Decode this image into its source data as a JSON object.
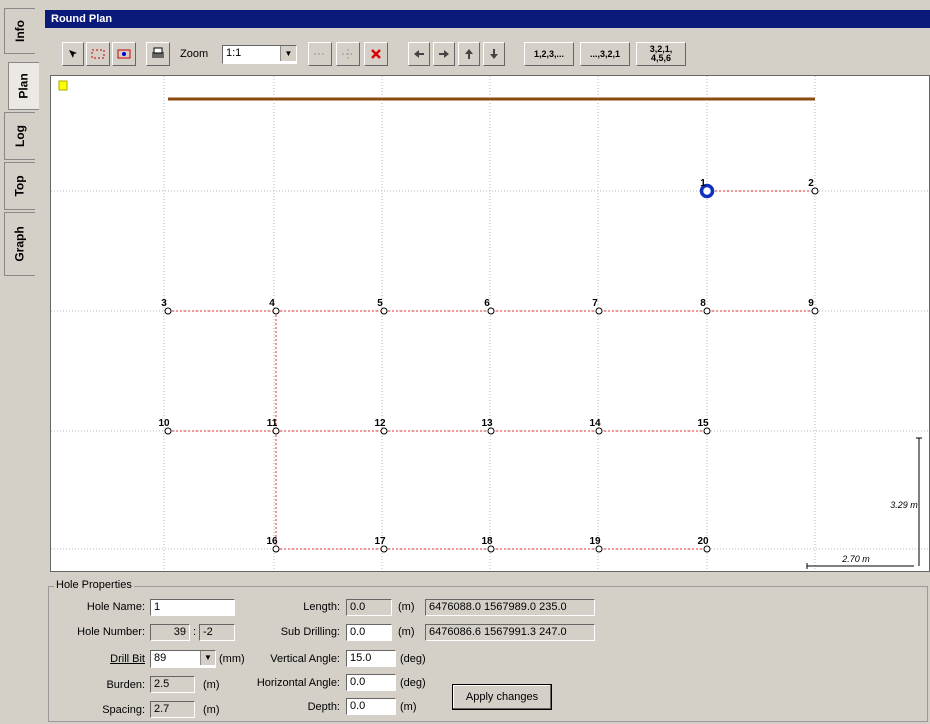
{
  "tabs": [
    "Info",
    "Plan",
    "Log",
    "Top",
    "Graph"
  ],
  "window_title": "Round Plan",
  "toolbar": {
    "zoom_label": "Zoom",
    "zoom_value": "1:1",
    "text_buttons": [
      "1,2,3,...",
      "...,3,2,1",
      "3,2,1, 4,5,6"
    ]
  },
  "plan": {
    "holes": [
      "1",
      "2",
      "3",
      "4",
      "5",
      "6",
      "7",
      "8",
      "9",
      "10",
      "11",
      "12",
      "13",
      "14",
      "15",
      "16",
      "17",
      "18",
      "19",
      "20"
    ],
    "scale_vertical": "3.29 m",
    "scale_horizontal": "2.70 m"
  },
  "properties": {
    "title": "Hole Properties",
    "hole_name": {
      "label": "Hole Name:",
      "value": "1"
    },
    "hole_number": {
      "label": "Hole Number:",
      "value": "39",
      "separator": ":",
      "value2": "-2"
    },
    "drill_bit": {
      "label": "Drill Bit",
      "value": "89",
      "unit": "(mm)"
    },
    "burden": {
      "label": "Burden:",
      "value": "2.5",
      "unit": "(m)"
    },
    "spacing": {
      "label": "Spacing:",
      "value": "2.7",
      "unit": "(m)"
    },
    "length": {
      "label": "Length:",
      "value": "0.0",
      "unit": "(m)",
      "coords": "6476088.0 1567989.0 235.0"
    },
    "sub_drilling": {
      "label": "Sub Drilling:",
      "value": "0.0",
      "unit": "(m)",
      "coords": "6476086.6 1567991.3 247.0"
    },
    "vertical_angle": {
      "label": "Vertical Angle:",
      "value": "15.0",
      "unit": "(deg)"
    },
    "horizontal_angle": {
      "label": "Horizontal Angle:",
      "value": "0.0",
      "unit": "(deg)"
    },
    "depth": {
      "label": "Depth:",
      "value": "0.0",
      "unit": "(m)"
    },
    "apply_button": "Apply changes"
  }
}
